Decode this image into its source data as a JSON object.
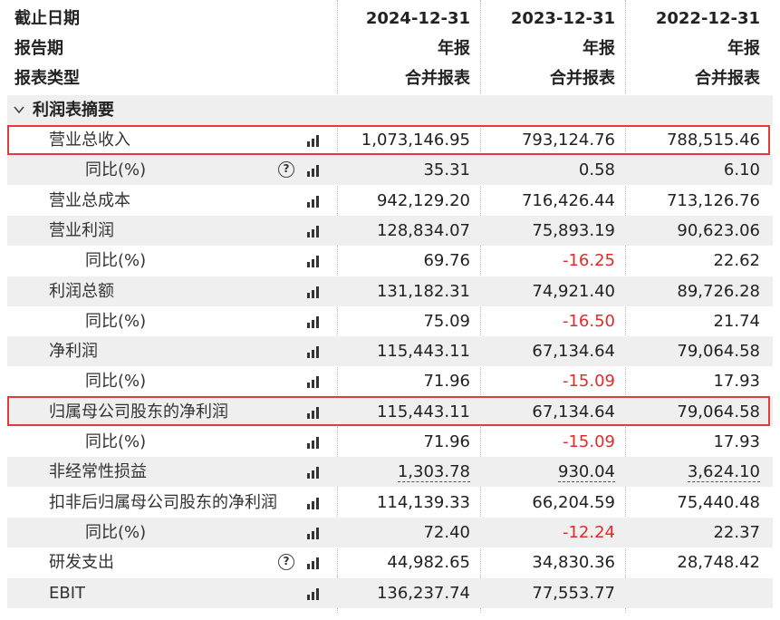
{
  "header": {
    "label_date": "截止日期",
    "label_period": "报告期",
    "label_type": "报表类型",
    "columns": [
      {
        "date": "2024-12-31",
        "period": "年报",
        "type": "合并报表"
      },
      {
        "date": "2023-12-31",
        "period": "年报",
        "type": "合并报表"
      },
      {
        "date": "2022-12-31",
        "period": "年报",
        "type": "合并报表"
      }
    ]
  },
  "section": {
    "label": "利润表摘要",
    "icon": "chevron-down-icon"
  },
  "rows": [
    {
      "name": "营业总收入",
      "values": [
        "1,073,146.95",
        "793,124.76",
        "788,515.46"
      ]
    },
    {
      "name": "同比(%)",
      "values": [
        "35.31",
        "0.58",
        "6.10"
      ]
    },
    {
      "name": "营业总成本",
      "values": [
        "942,129.20",
        "716,426.44",
        "713,126.76"
      ]
    },
    {
      "name": "营业利润",
      "values": [
        "128,834.07",
        "75,893.19",
        "90,623.06"
      ]
    },
    {
      "name": "同比(%)",
      "values": [
        "69.76",
        "-16.25",
        "22.62"
      ]
    },
    {
      "name": "利润总额",
      "values": [
        "131,182.31",
        "74,921.40",
        "89,726.28"
      ]
    },
    {
      "name": "同比(%)",
      "values": [
        "75.09",
        "-16.50",
        "21.74"
      ]
    },
    {
      "name": "净利润",
      "values": [
        "115,443.11",
        "67,134.64",
        "79,064.58"
      ]
    },
    {
      "name": "同比(%)",
      "values": [
        "71.96",
        "-15.09",
        "17.93"
      ]
    },
    {
      "name": "归属母公司股东的净利润",
      "values": [
        "115,443.11",
        "67,134.64",
        "79,064.58"
      ]
    },
    {
      "name": "同比(%)",
      "values": [
        "71.96",
        "-15.09",
        "17.93"
      ]
    },
    {
      "name": "非经常性损益",
      "values": [
        "1,303.78",
        "930.04",
        "3,624.10"
      ]
    },
    {
      "name": "扣非后归属母公司股东的净利润",
      "values": [
        "114,139.33",
        "66,204.59",
        "75,440.48"
      ]
    },
    {
      "name": "同比(%)",
      "values": [
        "72.40",
        "-12.24",
        "22.37"
      ]
    },
    {
      "name": "研发支出",
      "values": [
        "44,982.65",
        "34,830.36",
        "28,748.42"
      ]
    },
    {
      "name": "EBIT",
      "values": [
        "136,237.74",
        "77,553.77",
        ""
      ]
    }
  ],
  "help_icon_glyph": "?",
  "colors": {
    "negative": "#e02b2b",
    "highlight": "#e23b3b",
    "stripe": "#efefef"
  }
}
